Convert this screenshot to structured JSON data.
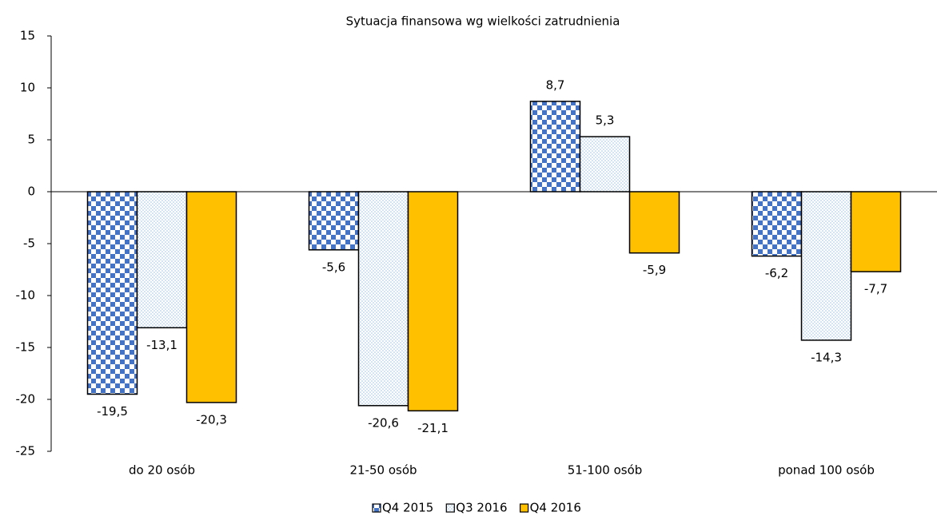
{
  "chart_data": {
    "type": "bar",
    "title": "Sytuacja finansowa wg wielkości zatrudnienia",
    "categories": [
      "do 20 osób",
      "21-50 osób",
      "51-100 osób",
      "ponad 100 osób"
    ],
    "series": [
      {
        "name": "Q4 2015",
        "color": "#4472c4",
        "fill_pattern": "checker",
        "values": [
          -19.5,
          -5.6,
          8.7,
          -6.2
        ],
        "value_labels": [
          "-19,5",
          "-5,6",
          "8,7",
          "-6,2"
        ]
      },
      {
        "name": "Q3 2016",
        "color": "#9dc3e6",
        "fill_pattern": "dots",
        "values": [
          -13.1,
          -20.6,
          5.3,
          -14.3
        ],
        "value_labels": [
          "-13,1",
          "-20,6",
          "5,3",
          "-14,3"
        ]
      },
      {
        "name": "Q4 2016",
        "color": "#ffc000",
        "fill_pattern": "solid",
        "values": [
          -20.3,
          -21.1,
          -5.9,
          -7.7
        ],
        "value_labels": [
          "-20,3",
          "-21,1",
          "-5,9",
          "-7,7"
        ]
      }
    ],
    "ylim": [
      -25,
      15
    ],
    "yticks": [
      15,
      10,
      5,
      0,
      -5,
      -10,
      -15,
      -20,
      -25
    ],
    "grid": false,
    "legend": "bottom"
  }
}
